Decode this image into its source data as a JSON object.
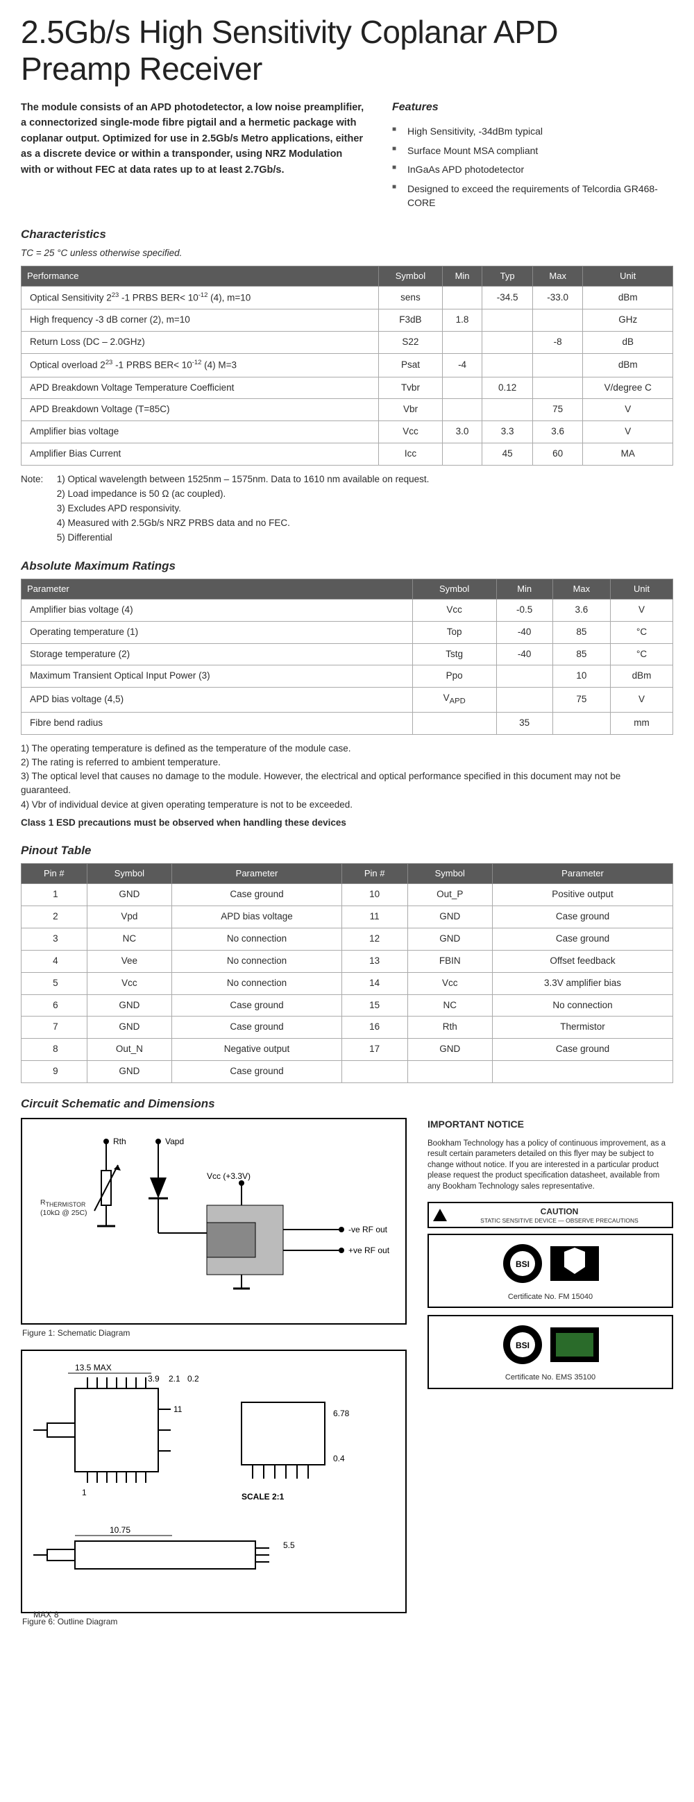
{
  "title": "2.5Gb/s High Sensitivity Coplanar APD Preamp Receiver",
  "intro_html": "<b>The module consists of an APD photodetector, a low noise preamplifier, a connectorized single-mode fibre pigtail and a hermetic package with coplanar output. Optimized for use in 2.5Gb/s Metro applications, either as a discrete device or within a transponder, using NRZ Modulation with or without FEC at data rates up to at least 2.7Gb/s.</b>",
  "features_heading": "Features",
  "features": [
    "High Sensitivity, -34dBm typical",
    "Surface Mount MSA compliant",
    "InGaAs APD photodetector",
    "Designed to exceed the requirements of Telcordia GR468-CORE"
  ],
  "char_heading": "Characteristics",
  "char_subnote": "TC = 25 °C unless otherwise specified.",
  "char_headers": [
    "Performance",
    "Symbol",
    "Min",
    "Typ",
    "Max",
    "Unit"
  ],
  "char_rows": [
    [
      "Optical Sensitivity 2<sup>23</sup> -1 PRBS BER< 10<sup>-12</sup> (4), m=10",
      "sens",
      "",
      "-34.5",
      "-33.0",
      "dBm"
    ],
    [
      "High frequency -3 dB corner (2), m=10",
      "F3dB",
      "1.8",
      "",
      "",
      "GHz"
    ],
    [
      "Return Loss (DC – 2.0GHz)",
      "S22",
      "",
      "",
      "-8",
      "dB"
    ],
    [
      "Optical overload 2<sup>23</sup> -1 PRBS BER< 10<sup>-12</sup> (4) M=3",
      "Psat",
      "-4",
      "",
      "",
      "dBm"
    ],
    [
      "APD Breakdown Voltage Temperature Coefficient",
      "Tvbr",
      "",
      "0.12",
      "",
      "V/degree C"
    ],
    [
      "APD Breakdown Voltage (T=85C)",
      "Vbr",
      "",
      "",
      "75",
      "V"
    ],
    [
      "Amplifier bias voltage",
      "Vcc",
      "3.0",
      "3.3",
      "3.6",
      "V"
    ],
    [
      "Amplifier Bias Current",
      "Icc",
      "",
      "45",
      "60",
      "MA"
    ]
  ],
  "char_notes_label": "Note:",
  "char_notes": [
    "1) Optical wavelength between 1525nm – 1575nm. Data to 1610 nm available on request.",
    "2) Load impedance is 50 Ω (ac coupled).",
    "3) Excludes APD responsivity.",
    "4) Measured with 2.5Gb/s NRZ PRBS data and no FEC.",
    "5) Differential"
  ],
  "amr_heading": "Absolute Maximum Ratings",
  "amr_headers": [
    "Parameter",
    "Symbol",
    "Min",
    "Max",
    "Unit"
  ],
  "amr_rows": [
    [
      "Amplifier bias voltage (4)",
      "Vcc",
      "-0.5",
      "3.6",
      "V"
    ],
    [
      "Operating temperature (1)",
      "Top",
      "-40",
      "85",
      "°C"
    ],
    [
      "Storage temperature (2)",
      "Tstg",
      "-40",
      "85",
      "°C"
    ],
    [
      "Maximum Transient Optical Input Power (3)",
      "Ppo",
      "",
      "10",
      "dBm"
    ],
    [
      "APD bias voltage (4,5)",
      "V<sub>APD</sub>",
      "",
      "75",
      "V"
    ],
    [
      "Fibre bend radius",
      "",
      "35",
      "",
      "mm"
    ]
  ],
  "amr_footnotes": [
    "1)  The operating temperature is defined as the temperature of the module case.",
    "2)  The rating is referred to ambient temperature.",
    "3)  The optical level that causes no damage to the module. However, the electrical and optical performance specified in this document may not be guaranteed.",
    "4)  Vbr of individual device at given operating temperature is not to be exceeded."
  ],
  "amr_bold_note": "Class 1 ESD precautions must be observed when handling these devices",
  "pinout_heading": "Pinout Table",
  "pinout_headers": [
    "Pin #",
    "Symbol",
    "Parameter",
    "Pin #",
    "Symbol",
    "Parameter"
  ],
  "pinout_rows": [
    [
      "1",
      "GND",
      "Case ground",
      "10",
      "Out_P",
      "Positive output"
    ],
    [
      "2",
      "Vpd",
      "APD bias voltage",
      "11",
      "GND",
      "Case ground"
    ],
    [
      "3",
      "NC",
      "No connection",
      "12",
      "GND",
      "Case ground"
    ],
    [
      "4",
      "Vee",
      "No connection",
      "13",
      "FBIN",
      "Offset feedback"
    ],
    [
      "5",
      "Vcc",
      "No connection",
      "14",
      "Vcc",
      "3.3V amplifier bias"
    ],
    [
      "6",
      "GND",
      "Case ground",
      "15",
      "NC",
      "No connection"
    ],
    [
      "7",
      "GND",
      "Case ground",
      "16",
      "Rth",
      "Thermistor"
    ],
    [
      "8",
      "Out_N",
      "Negative output",
      "17",
      "GND",
      "Case ground"
    ],
    [
      "9",
      "GND",
      "Case ground",
      "",
      "",
      ""
    ]
  ],
  "schem_heading": "Circuit Schematic and Dimensions",
  "fig1_caption": "Figure 1: Schematic Diagram",
  "fig6_caption": "Figure 6: Outline Diagram",
  "notice_heading": "IMPORTANT NOTICE",
  "notice_text": "Bookham Technology has a policy of continuous improvement, as a result certain parameters detailed on this flyer may be subject to change without notice. If you are interested in a particular product please request the product specification datasheet, available from any Bookham Technology sales representative.",
  "caution_title": "CAUTION",
  "caution_sub": "STATIC SENSITIVE DEVICE — OBSERVE PRECAUTIONS",
  "cert1": "Certificate No. FM 15040",
  "cert2": "Certificate No. EMS 35100",
  "schematic_labels": {
    "rth": "Rth",
    "vapd": "Vapd",
    "rtherm": "R<sub>THERMISTOR</sub><br>(10kΩ @ 25C)",
    "vcc": "Vcc (+3.3V)",
    "neg": "-ve RF out",
    "pos": "+ve RF out"
  },
  "colors": {
    "header_bg": "#5a5a5a",
    "header_fg": "#ffffff",
    "border": "#aaaaaa",
    "text": "#2b2b2b"
  }
}
